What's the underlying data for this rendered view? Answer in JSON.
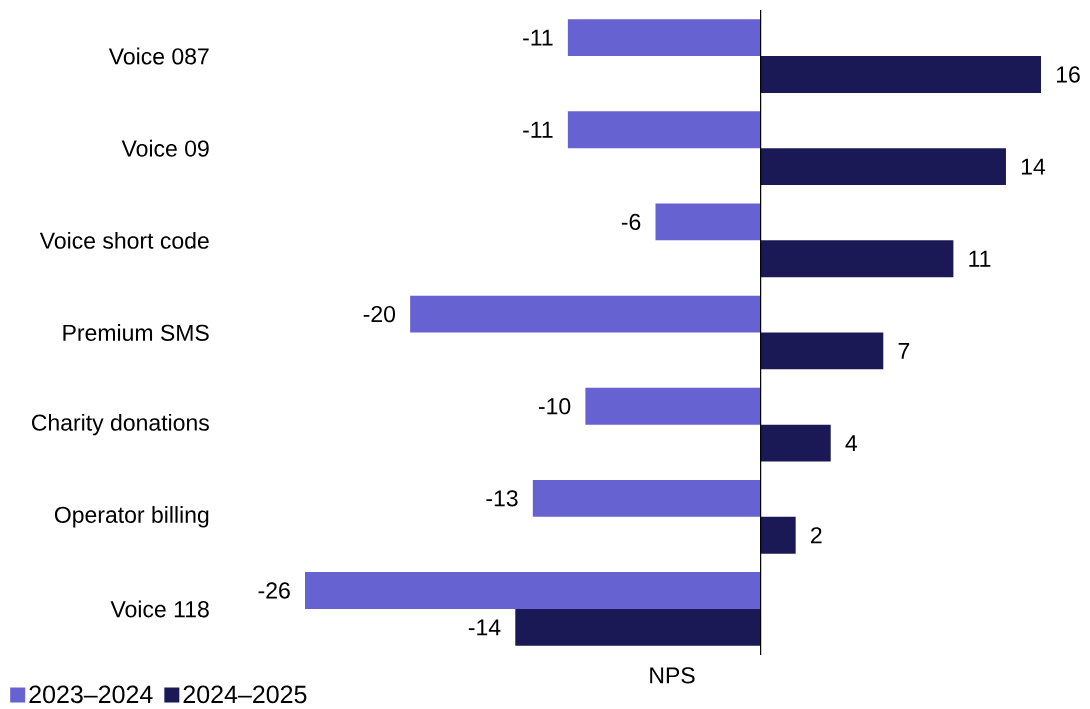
{
  "chart_data": {
    "type": "bar",
    "orientation": "horizontal",
    "xlabel": "NPS",
    "categories": [
      "Voice 087",
      "Voice 09",
      "Voice short code",
      "Premium SMS",
      "Charity donations",
      "Operator billing",
      "Voice 118"
    ],
    "series": [
      {
        "name": "2023–2024",
        "color": "#6762d2",
        "values": [
          -11,
          -11,
          -6,
          -20,
          -10,
          -13,
          -26
        ]
      },
      {
        "name": "2024–2025",
        "color": "#1b1856",
        "values": [
          16,
          14,
          11,
          7,
          4,
          2,
          -14
        ]
      }
    ],
    "data_labels": true,
    "legend": "bottom left",
    "tick_labels": "y"
  }
}
